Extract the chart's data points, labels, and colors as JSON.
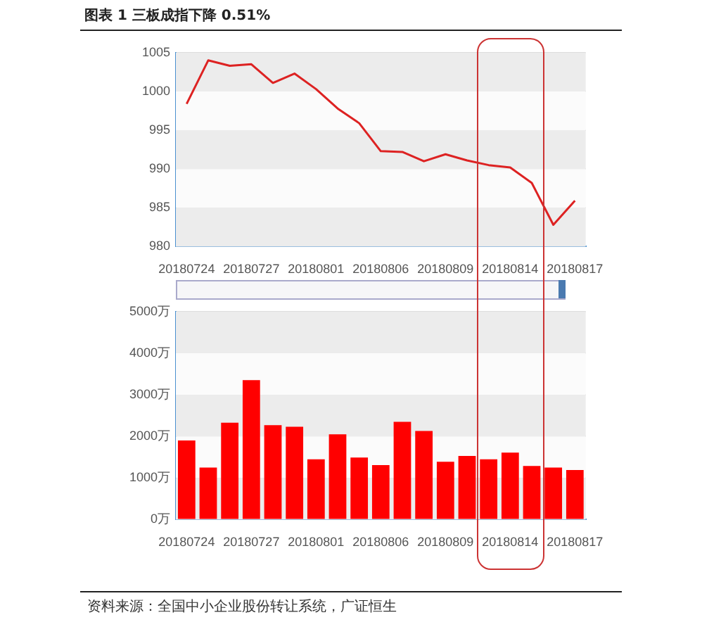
{
  "chart_data": [
    {
      "type": "line",
      "title": "图表 1 三板成指下降 0.51%",
      "categories": [
        "20180724",
        null,
        null,
        "20180727",
        null,
        null,
        "20180801",
        null,
        null,
        "20180806",
        null,
        null,
        "20180809",
        null,
        null,
        "20180814",
        null,
        null,
        "20180817"
      ],
      "values": [
        998.4,
        1004.0,
        1003.3,
        1003.5,
        1001.1,
        1002.3,
        1000.3,
        997.8,
        995.9,
        992.3,
        992.2,
        991.0,
        991.9,
        991.1,
        990.5,
        990.2,
        988.2,
        982.8,
        985.9
      ],
      "color": "#dd2222",
      "ylim": [
        980,
        1005
      ],
      "yticks": [
        980,
        985,
        990,
        995,
        1000,
        1005
      ],
      "grid": "y",
      "marker": "none"
    },
    {
      "type": "bar",
      "categories": [
        "20180724",
        null,
        null,
        "20180727",
        null,
        null,
        "20180801",
        null,
        null,
        "20180806",
        null,
        null,
        "20180809",
        null,
        null,
        "20180814",
        null,
        null,
        "20180817"
      ],
      "values": [
        1900,
        1250,
        2330,
        3350,
        2270,
        2230,
        1450,
        2050,
        1490,
        1310,
        2350,
        2130,
        1390,
        1530,
        1450,
        1610,
        1290,
        1250,
        1190
      ],
      "color": "#ff0000",
      "ylim": [
        0,
        5000
      ],
      "yticks": [
        {
          "value": 0,
          "label": "0万"
        },
        {
          "value": 1000,
          "label": "1000万"
        },
        {
          "value": 2000,
          "label": "2000万"
        },
        {
          "value": 3000,
          "label": "3000万"
        },
        {
          "value": 4000,
          "label": "4000万"
        },
        {
          "value": 5000,
          "label": "5000万"
        }
      ],
      "grid": "y",
      "annotations": [
        "资料来源：全国中小企业股份转让系统，广证恒生"
      ]
    }
  ]
}
